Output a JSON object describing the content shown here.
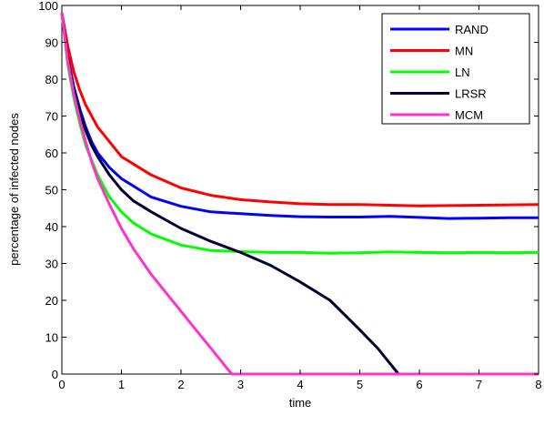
{
  "chart_data": {
    "type": "line",
    "title": "",
    "xlabel": "time",
    "ylabel": "percentage of infected nodes",
    "xlim": [
      0,
      8
    ],
    "ylim": [
      0,
      100
    ],
    "xticks": [
      "0",
      "1",
      "2",
      "3",
      "4",
      "5",
      "6",
      "7",
      "8"
    ],
    "yticks": [
      "0",
      "10",
      "20",
      "30",
      "40",
      "50",
      "60",
      "70",
      "80",
      "90",
      "100"
    ],
    "grid": false,
    "legend_position": "top-right",
    "series": [
      {
        "name": "RAND",
        "color": "#0000ff",
        "x": [
          0,
          0.1,
          0.2,
          0.3,
          0.4,
          0.5,
          0.6,
          0.8,
          1.0,
          1.2,
          1.5,
          2.0,
          2.5,
          3.0,
          3.5,
          4.0,
          4.5,
          5.0,
          5.5,
          6.0,
          6.5,
          7.0,
          7.5,
          8.0
        ],
        "y": [
          98,
          86,
          78,
          72,
          67,
          63,
          60,
          56,
          53,
          51,
          48,
          45.5,
          44,
          43.5,
          43,
          42.7,
          42.6,
          42.6,
          42.8,
          42.5,
          42.2,
          42.3,
          42.4,
          42.4
        ]
      },
      {
        "name": "MN",
        "color": "#ff0000",
        "x": [
          0,
          0.1,
          0.2,
          0.3,
          0.4,
          0.5,
          0.6,
          0.8,
          1.0,
          1.2,
          1.5,
          2.0,
          2.5,
          3.0,
          3.5,
          4.0,
          4.5,
          5.0,
          5.5,
          6.0,
          6.5,
          7.0,
          7.5,
          8.0
        ],
        "y": [
          98,
          89,
          82,
          77,
          73,
          70,
          67,
          63,
          59,
          57,
          54,
          50.5,
          48.5,
          47.3,
          46.7,
          46.2,
          46,
          46,
          45.8,
          45.6,
          45.7,
          45.8,
          45.9,
          46
        ]
      },
      {
        "name": "LN",
        "color": "#00ff00",
        "x": [
          0,
          0.1,
          0.2,
          0.3,
          0.4,
          0.5,
          0.6,
          0.8,
          1.0,
          1.2,
          1.5,
          2.0,
          2.5,
          3.0,
          3.5,
          4.0,
          4.5,
          5.0,
          5.5,
          6.0,
          6.5,
          7.0,
          7.5,
          8.0
        ],
        "y": [
          98,
          84,
          75,
          68,
          62,
          58,
          54,
          48,
          44,
          41,
          38,
          35,
          33.5,
          33.2,
          33,
          33,
          32.8,
          32.9,
          33.1,
          33,
          32.9,
          33,
          32.9,
          33
        ]
      },
      {
        "name": "LRSR",
        "color": "#000033",
        "x": [
          0,
          0.1,
          0.2,
          0.3,
          0.4,
          0.5,
          0.6,
          0.8,
          1.0,
          1.2,
          1.5,
          2.0,
          2.5,
          3.0,
          3.5,
          4.0,
          4.5,
          5.0,
          5.3,
          5.5,
          5.65
        ],
        "y": [
          98,
          86,
          77,
          71,
          66,
          62,
          59,
          54,
          50,
          47,
          44,
          39.5,
          36,
          33,
          29.5,
          25,
          20,
          12,
          7,
          3,
          0
        ]
      },
      {
        "name": "MCM",
        "color": "#ff33cc",
        "x": [
          0,
          0.1,
          0.2,
          0.3,
          0.4,
          0.5,
          0.6,
          0.8,
          1.0,
          1.2,
          1.5,
          1.8,
          2.0,
          2.2,
          2.5,
          2.7,
          2.85,
          3.0,
          4.0,
          5.0,
          6.0,
          7.0,
          8.0
        ],
        "y": [
          98,
          85,
          76,
          69,
          63,
          57.5,
          53,
          46,
          39.5,
          34,
          27,
          21,
          17,
          13,
          7,
          3,
          0,
          0,
          0,
          0,
          0,
          0,
          0
        ]
      }
    ]
  }
}
